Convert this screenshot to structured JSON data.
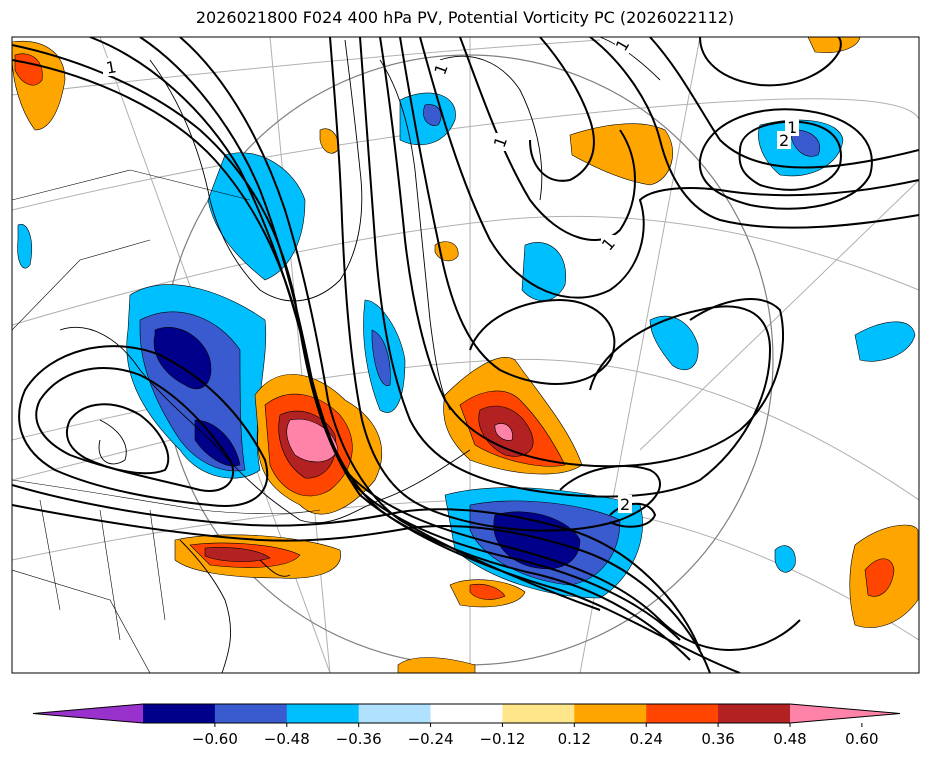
{
  "title": "2026021800 F024 400 hPa PV, Potential Vorticity PC (2026022112)",
  "colors": {
    "map_frame": "#000000",
    "graticule": "#b0b0b0",
    "circle": "#808080",
    "coast": "#000000",
    "contour": "#000000"
  },
  "chart_data": {
    "type": "heatmap",
    "title": "2026021800 F024 400 hPa PV, Potential Vorticity PC (2026022112)",
    "projection": "polar stereographic, North Atlantic / North America sector",
    "fill_variable": "Potential Vorticity PC (shaded)",
    "contour_variable": "400 hPa PV (black contours, labelled 1 and 2)",
    "contour_labels": [
      "1",
      "1",
      "1",
      "1",
      "1",
      "1",
      "2",
      "2"
    ],
    "colorbar": {
      "orientation": "horizontal",
      "extend": "both",
      "ticks": [
        -0.6,
        -0.48,
        -0.36,
        -0.24,
        -0.12,
        0.12,
        0.24,
        0.36,
        0.48,
        0.6
      ],
      "tick_labels": [
        "−0.60",
        "−0.48",
        "−0.36",
        "−0.24",
        "−0.12",
        "0.12",
        "0.24",
        "0.36",
        "0.48",
        "0.60"
      ],
      "colors": [
        "#9932cc",
        "#00008b",
        "#3a5bd0",
        "#00bfff",
        "#b0e2ff",
        "#ffffff",
        "#ffe68a",
        "#ffa500",
        "#ff4500",
        "#b22222",
        "#ff83a8"
      ]
    },
    "features": [
      {
        "name": "negative PC anomaly over Hudson Bay region",
        "min": -0.6
      },
      {
        "name": "negative PC anomaly over central Atlantic",
        "min": -0.6
      },
      {
        "name": "positive PC anomaly over Quebec / Maritimes",
        "max": 0.6
      },
      {
        "name": "positive PC anomaly over Newfoundland",
        "max": 0.6
      },
      {
        "name": "positive PC anomaly over US East Coast",
        "max": 0.48
      }
    ]
  }
}
